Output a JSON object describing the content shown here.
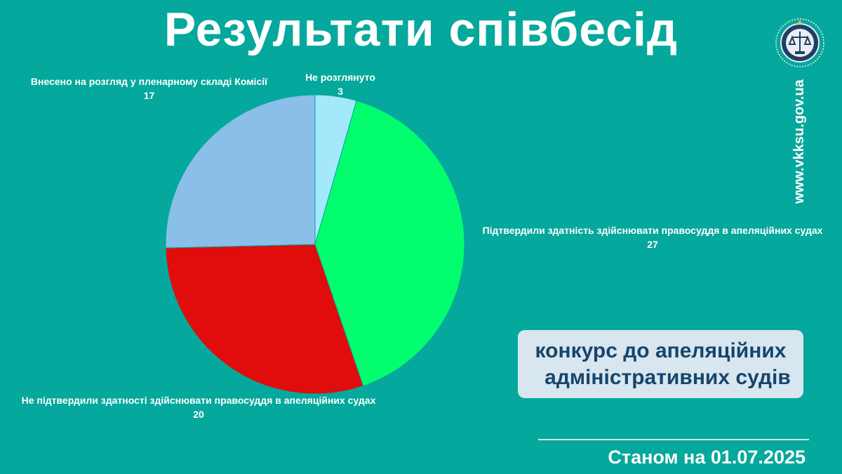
{
  "header": {
    "title": "Результати співбесід"
  },
  "side": {
    "website": "www.vkksu.gov.ua"
  },
  "contest": {
    "line1": "конкурс до апеляційних",
    "line2": "адміністративних судів"
  },
  "footer": {
    "as_of": "Станом на 01.07.2025"
  },
  "colors": {
    "background": "#05a89c",
    "box_text": "#17456b"
  },
  "chart_data": {
    "type": "pie",
    "title": "Результати співбесід",
    "slices": [
      {
        "label": "Не розглянуто",
        "value": 3,
        "color": "#a3e8fb"
      },
      {
        "label": "Підтвердили здатність здійснювати правосуддя в апеляційних судах",
        "value": 27,
        "color": "#02fd6f"
      },
      {
        "label": "Не підтвердили здатності здійснювати правосуддя в апеляційних судах",
        "value": 20,
        "color": "#e10c0c"
      },
      {
        "label": "Внесено на розгляд у пленарному складі Комісії",
        "value": 17,
        "color": "#8abfe9"
      }
    ]
  }
}
